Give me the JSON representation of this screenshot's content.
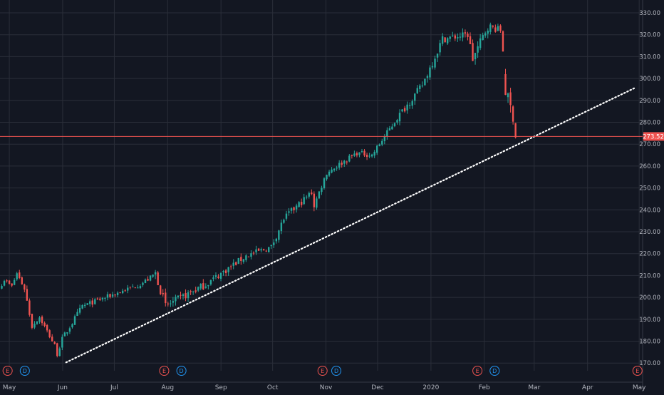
{
  "chart_data": {
    "type": "candlestick",
    "colors": {
      "background": "#131722",
      "grid": "#2a2e39",
      "up": "#26a69a",
      "down": "#ef5350",
      "axis_text": "#b2b5be",
      "price_line": "#ef5350",
      "trendline": "#ffffff",
      "event_earnings": "#ef5350",
      "event_dividend": "#2196f3"
    },
    "y_axis": {
      "min": 167,
      "max": 333,
      "ticks": [
        "170.00",
        "180.00",
        "190.00",
        "200.00",
        "210.00",
        "220.00",
        "230.00",
        "240.00",
        "250.00",
        "260.00",
        "270.00",
        "280.00",
        "290.00",
        "300.00",
        "310.00",
        "320.00",
        "330.00"
      ]
    },
    "x_axis": {
      "labels": [
        "May",
        "Jun",
        "Jul",
        "Aug",
        "Sep",
        "Oct",
        "Nov",
        "Dec",
        "2020",
        "Feb",
        "Mar",
        "Apr",
        "May"
      ]
    },
    "last_price": {
      "value": 273.52,
      "label": "273.52"
    },
    "trendline": {
      "from": {
        "x": "2019-06-03",
        "y": 170.3
      },
      "to": {
        "x": "2020-04-28",
        "y": 295.5
      }
    },
    "events": [
      {
        "x": "2019-04-30",
        "label": "E",
        "kind": "earnings"
      },
      {
        "x": "2019-05-10",
        "label": "D",
        "kind": "dividend"
      },
      {
        "x": "2019-07-30",
        "label": "E",
        "kind": "earnings"
      },
      {
        "x": "2019-08-09",
        "label": "D",
        "kind": "dividend"
      },
      {
        "x": "2019-10-30",
        "label": "E",
        "kind": "earnings"
      },
      {
        "x": "2019-11-07",
        "label": "D",
        "kind": "dividend"
      },
      {
        "x": "2020-01-28",
        "label": "E",
        "kind": "earnings"
      },
      {
        "x": "2020-02-07",
        "label": "D",
        "kind": "dividend"
      },
      {
        "x": "2020-04-30",
        "label": "E",
        "kind": "earnings"
      }
    ],
    "segments": [
      {
        "t0": 0,
        "t1": 2,
        "p0": 204,
        "p1": 208,
        "v": 0.7
      },
      {
        "t0": 2,
        "t1": 5,
        "p0": 208,
        "p1": 205,
        "v": 0.8
      },
      {
        "t0": 5,
        "t1": 7,
        "p0": 205,
        "p1": 211,
        "v": 0.8
      },
      {
        "t0": 7,
        "t1": 10,
        "p0": 211,
        "p1": 204,
        "v": 1.0
      },
      {
        "t0": 10,
        "t1": 13,
        "p0": 204,
        "p1": 187,
        "v": 1.4
      },
      {
        "t0": 13,
        "t1": 16,
        "p0": 187,
        "p1": 191,
        "v": 1.0
      },
      {
        "t0": 16,
        "t1": 22,
        "p0": 191,
        "p1": 178,
        "v": 1.0
      },
      {
        "t0": 22,
        "t1": 23,
        "p0": 178,
        "p1": 174,
        "v": 0.8
      },
      {
        "t0": 23,
        "t1": 25,
        "p0": 174,
        "p1": 181,
        "v": 1.0
      },
      {
        "t0": 25,
        "t1": 33,
        "p0": 181,
        "p1": 196,
        "v": 1.2
      },
      {
        "t0": 33,
        "t1": 56,
        "p0": 196,
        "p1": 206,
        "v": 1.0
      },
      {
        "t0": 56,
        "t1": 60,
        "p0": 206,
        "p1": 209,
        "v": 1.0
      },
      {
        "t0": 60,
        "t1": 62,
        "p0": 209,
        "p1": 211,
        "v": 1.6
      },
      {
        "t0": 62,
        "t1": 66,
        "p0": 211,
        "p1": 196,
        "v": 1.8
      },
      {
        "t0": 66,
        "t1": 82,
        "p0": 196,
        "p1": 206,
        "v": 1.6
      },
      {
        "t0": 82,
        "t1": 98,
        "p0": 206,
        "p1": 219,
        "v": 1.4
      },
      {
        "t0": 98,
        "t1": 108,
        "p0": 219,
        "p1": 223,
        "v": 1.3
      },
      {
        "t0": 108,
        "t1": 113,
        "p0": 223,
        "p1": 236,
        "v": 1.3
      },
      {
        "t0": 113,
        "t1": 124,
        "p0": 236,
        "p1": 248,
        "v": 1.4
      },
      {
        "t0": 124,
        "t1": 125,
        "p0": 248,
        "p1": 242,
        "v": 1.5
      },
      {
        "t0": 125,
        "t1": 130,
        "p0": 242,
        "p1": 257,
        "v": 1.2
      },
      {
        "t0": 130,
        "t1": 142,
        "p0": 257,
        "p1": 266,
        "v": 1.1
      },
      {
        "t0": 142,
        "t1": 148,
        "p0": 266,
        "p1": 265,
        "v": 1.1
      },
      {
        "t0": 148,
        "t1": 158,
        "p0": 265,
        "p1": 282,
        "v": 1.2
      },
      {
        "t0": 158,
        "t1": 168,
        "p0": 282,
        "p1": 297,
        "v": 1.5
      },
      {
        "t0": 168,
        "t1": 176,
        "p0": 297,
        "p1": 318,
        "v": 1.7
      },
      {
        "t0": 176,
        "t1": 186,
        "p0": 318,
        "p1": 320,
        "v": 1.5
      },
      {
        "t0": 186,
        "t1": 188,
        "p0": 320,
        "p1": 309,
        "v": 2.2
      },
      {
        "t0": 188,
        "t1": 194,
        "p0": 309,
        "p1": 324,
        "v": 2.0
      },
      {
        "t0": 194,
        "t1": 199,
        "p0": 324,
        "p1": 322,
        "v": 1.5
      },
      {
        "t0": 199,
        "t1": 200,
        "p0": 322,
        "p1": 313,
        "v": 1.6
      },
      {
        "t0": 200,
        "t1": 204,
        "p0": 298,
        "p1": 283,
        "v": 2.8
      },
      {
        "t0": 204,
        "t1": 205,
        "p0": 283,
        "p1": 274,
        "v": 2.4
      }
    ]
  }
}
